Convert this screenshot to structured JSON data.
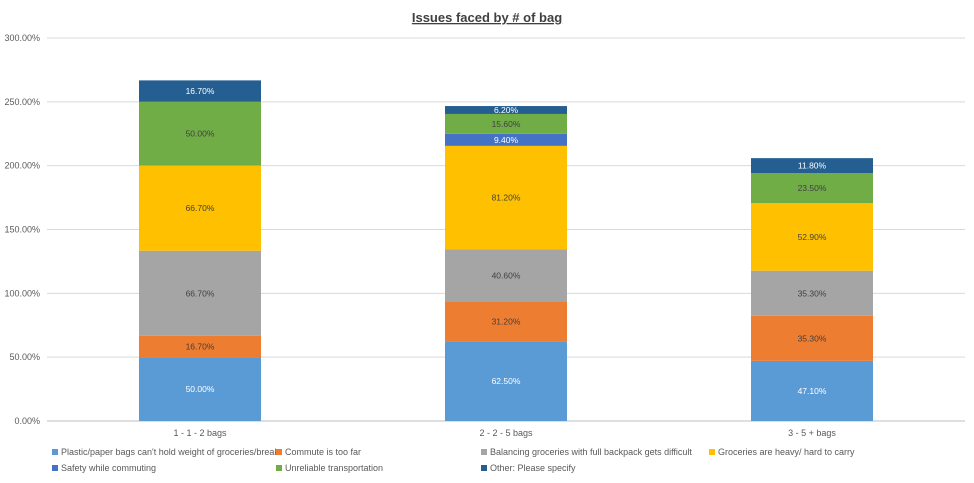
{
  "chart_data": {
    "type": "bar",
    "stacked": true,
    "title": "Issues faced by # of bag",
    "xlabel": "",
    "ylabel": "",
    "ylim": [
      0,
      300
    ],
    "y_ticks": [
      "0.00%",
      "50.00%",
      "100.00%",
      "150.00%",
      "200.00%",
      "250.00%",
      "300.00%"
    ],
    "grid": true,
    "legend_position": "bottom",
    "categories": [
      "1 - 1 - 2 bags",
      "2 - 2 - 5 bags",
      "3 - 5 + bags"
    ],
    "series": [
      {
        "name": "Plastic/paper bags can't hold weight of groceries/break",
        "color": "#5b9bd5",
        "values": [
          50.0,
          62.5,
          47.1
        ],
        "labels": [
          "50.00%",
          "62.50%",
          "47.10%"
        ],
        "label_color": "#ffffff"
      },
      {
        "name": "Commute is too far",
        "color": "#ed7d31",
        "values": [
          16.7,
          31.2,
          35.3
        ],
        "labels": [
          "16.70%",
          "31.20%",
          "35.30%"
        ],
        "label_color": "#404040"
      },
      {
        "name": "Balancing groceries with full backpack gets difficult",
        "color": "#a5a5a5",
        "values": [
          66.7,
          40.6,
          35.3
        ],
        "labels": [
          "66.70%",
          "40.60%",
          "35.30%"
        ],
        "label_color": "#404040"
      },
      {
        "name": "Groceries are heavy/ hard to carry",
        "color": "#ffc000",
        "values": [
          66.7,
          81.2,
          52.9
        ],
        "labels": [
          "66.70%",
          "81.20%",
          "52.90%"
        ],
        "label_color": "#404040"
      },
      {
        "name": "Safety while commuting",
        "color": "#4472c4",
        "values": [
          0.0,
          9.4,
          0.0
        ],
        "labels": [
          "",
          "9.40%",
          ""
        ],
        "label_color": "#ffffff"
      },
      {
        "name": "Unreliable transportation",
        "color": "#70ad47",
        "values": [
          50.0,
          15.6,
          23.5
        ],
        "labels": [
          "50.00%",
          "15.60%",
          "23.50%"
        ],
        "label_color": "#404040"
      },
      {
        "name": "Other: Please specify",
        "color": "#255e91",
        "values": [
          16.7,
          6.2,
          11.8
        ],
        "labels": [
          "16.70%",
          "6.20%",
          "11.80%"
        ],
        "label_color": "#ffffff"
      }
    ]
  }
}
